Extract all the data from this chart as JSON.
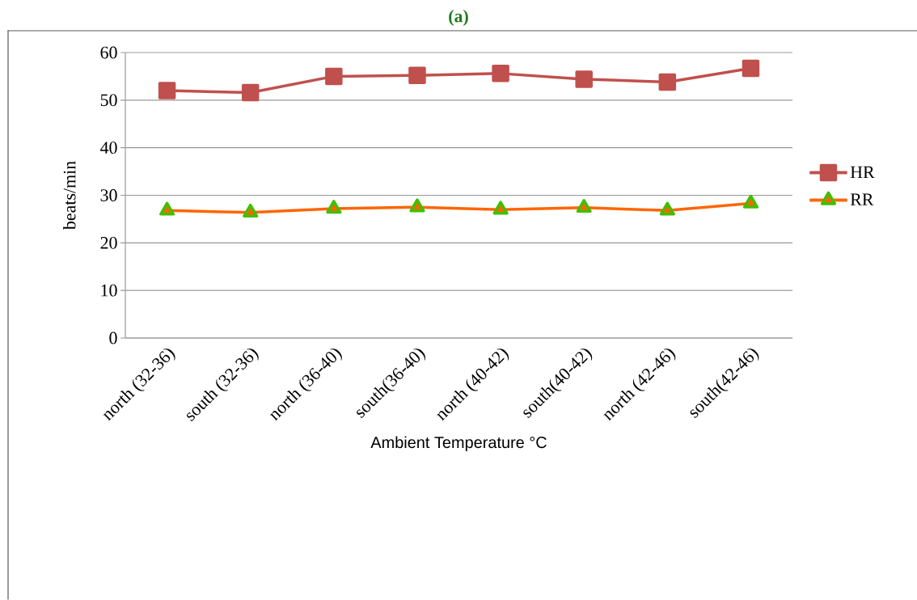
{
  "chart_data": {
    "type": "line",
    "title": "(a)",
    "xlabel": "Ambient Temperature °C",
    "ylabel": "beats/min",
    "categories": [
      "north (32-36)",
      "south (32-36)",
      "north (36-40)",
      "south(36-40)",
      "north (40-42)",
      "south(40-42)",
      "north (42-46)",
      "south(42-46)"
    ],
    "series": [
      {
        "name": "HR",
        "color": "#c0504d",
        "marker": "square",
        "values": [
          52.0,
          51.6,
          55.0,
          55.2,
          55.6,
          54.4,
          53.8,
          56.7
        ]
      },
      {
        "name": "RR",
        "color": "#ff6600",
        "marker": "triangle",
        "values": [
          26.8,
          26.4,
          27.2,
          27.5,
          27.0,
          27.4,
          26.8,
          28.3
        ]
      }
    ],
    "ylim": [
      0,
      60
    ],
    "yticks": [
      0,
      10,
      20,
      30,
      40,
      50,
      60
    ],
    "grid": "y",
    "legend": "right",
    "line_style": "solid"
  }
}
